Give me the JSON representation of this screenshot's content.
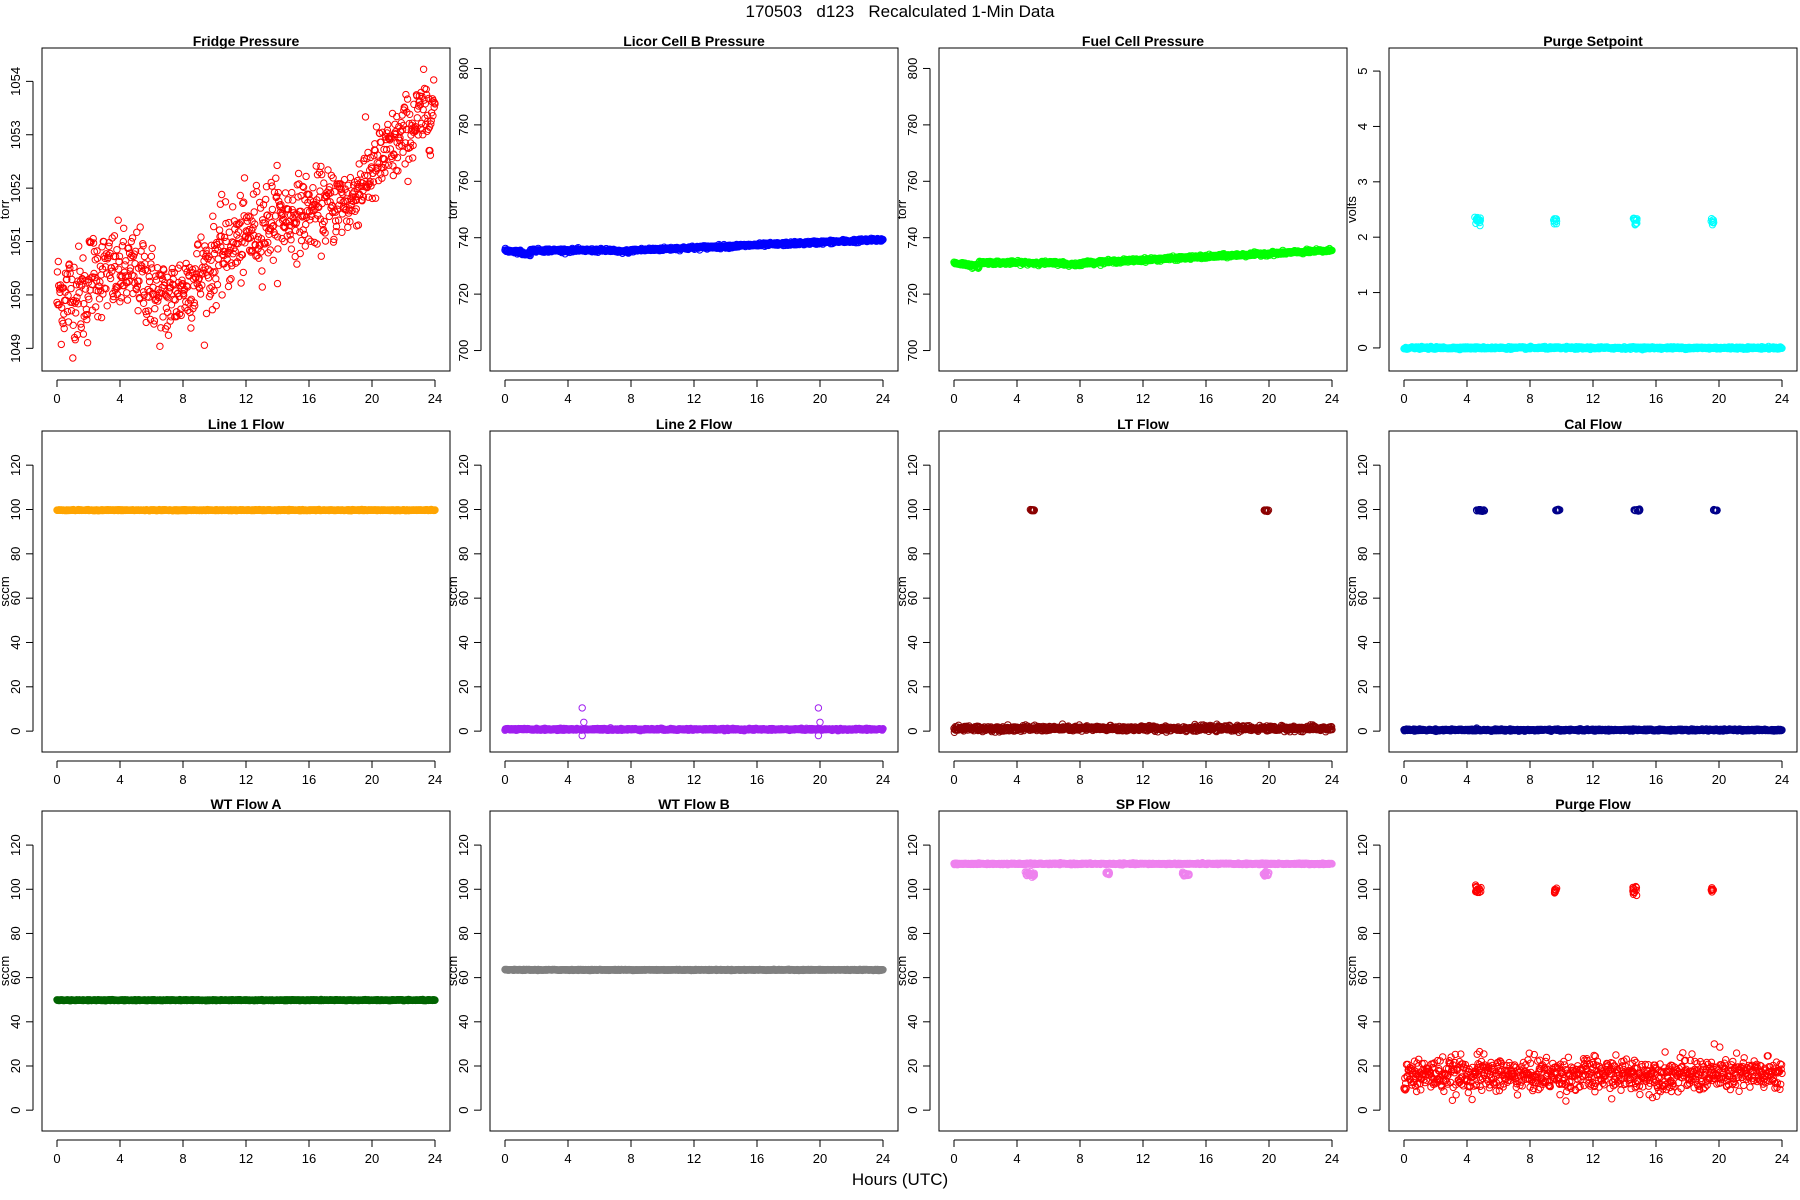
{
  "figure": {
    "title": "170503   d123   Recalculated 1-Min Data",
    "xlabel": "Hours (UTC)"
  },
  "chart_data": [
    {
      "type": "scatter",
      "title": "Fridge Pressure",
      "ylabel": "torr",
      "color": "#ff0000",
      "xlim": [
        0,
        24
      ],
      "ylim": [
        1048.8,
        1054.4
      ],
      "xticks": [
        0,
        4,
        8,
        12,
        16,
        20,
        24
      ],
      "yticks": [
        1049,
        1050,
        1051,
        1052,
        1053,
        1054
      ],
      "series": [
        {
          "segments": [
            {
              "x0": 0,
              "x1": 2,
              "y0": 1050.0,
              "y1": 1050.0,
              "noise": 0.45
            },
            {
              "x0": 2,
              "x1": 5.5,
              "y0": 1050.4,
              "y1": 1050.4,
              "noise": 0.4
            },
            {
              "x0": 5.5,
              "x1": 7,
              "y0": 1050.3,
              "y1": 1049.8,
              "noise": 0.4
            },
            {
              "x0": 7,
              "x1": 10,
              "y0": 1049.9,
              "y1": 1050.6,
              "noise": 0.4
            },
            {
              "x0": 10,
              "x1": 14,
              "y0": 1050.7,
              "y1": 1051.5,
              "noise": 0.4
            },
            {
              "x0": 14,
              "x1": 19,
              "y0": 1051.4,
              "y1": 1051.8,
              "noise": 0.35
            },
            {
              "x0": 19,
              "x1": 24,
              "y0": 1052.0,
              "y1": 1053.6,
              "noise": 0.35
            }
          ]
        }
      ]
    },
    {
      "type": "scatter",
      "title": "Licor Cell B Pressure",
      "ylabel": "torr",
      "color": "#0000ff",
      "xlim": [
        0,
        24
      ],
      "ylim": [
        697,
        803
      ],
      "xticks": [
        0,
        4,
        8,
        12,
        16,
        20,
        24
      ],
      "yticks": [
        700,
        720,
        740,
        760,
        780,
        800
      ],
      "series": [
        {
          "segments": [
            {
              "x0": 0,
              "x1": 1,
              "y0": 735.5,
              "y1": 735.0,
              "noise": 0.3
            },
            {
              "x0": 1,
              "x1": 1.6,
              "y0": 734.5,
              "y1": 734.2,
              "noise": 0.3
            },
            {
              "x0": 1.6,
              "x1": 7,
              "y0": 735.5,
              "y1": 735.5,
              "noise": 0.3
            },
            {
              "x0": 7,
              "x1": 8,
              "y0": 735.0,
              "y1": 735.2,
              "noise": 0.3
            },
            {
              "x0": 8,
              "x1": 24,
              "y0": 735.5,
              "y1": 739.3,
              "noise": 0.3
            }
          ]
        }
      ]
    },
    {
      "type": "scatter",
      "title": "Fuel Cell Pressure",
      "ylabel": "torr",
      "color": "#00ff00",
      "xlim": [
        0,
        24
      ],
      "ylim": [
        697,
        803
      ],
      "xticks": [
        0,
        4,
        8,
        12,
        16,
        20,
        24
      ],
      "yticks": [
        700,
        720,
        740,
        760,
        780,
        800
      ],
      "series": [
        {
          "segments": [
            {
              "x0": 0,
              "x1": 1,
              "y0": 731.0,
              "y1": 730.5,
              "noise": 0.3
            },
            {
              "x0": 1,
              "x1": 1.6,
              "y0": 730.0,
              "y1": 729.8,
              "noise": 0.3
            },
            {
              "x0": 1.6,
              "x1": 7,
              "y0": 731.2,
              "y1": 731.0,
              "noise": 0.3
            },
            {
              "x0": 7,
              "x1": 8,
              "y0": 730.5,
              "y1": 730.6,
              "noise": 0.3
            },
            {
              "x0": 8,
              "x1": 24,
              "y0": 731.0,
              "y1": 735.5,
              "noise": 0.3
            }
          ]
        }
      ]
    },
    {
      "type": "scatter",
      "title": "Purge Setpoint",
      "ylabel": "volts",
      "color": "#00ffff",
      "xlim": [
        0,
        24
      ],
      "ylim": [
        -0.2,
        5.2
      ],
      "xticks": [
        0,
        4,
        8,
        12,
        16,
        20,
        24
      ],
      "yticks": [
        0,
        1,
        2,
        3,
        4,
        5
      ],
      "series": [
        {
          "segments": [
            {
              "x0": 0,
              "x1": 24,
              "y0": 0.0,
              "y1": 0.0,
              "noise": 0.01
            }
          ],
          "clusters": [
            {
              "x0": 4.5,
              "x1": 4.9,
              "y": 2.3,
              "noise": 0.05
            },
            {
              "x0": 9.5,
              "x1": 9.7,
              "y": 2.3,
              "noise": 0.05
            },
            {
              "x0": 14.5,
              "x1": 14.8,
              "y": 2.3,
              "noise": 0.05
            },
            {
              "x0": 19.5,
              "x1": 19.7,
              "y": 2.3,
              "noise": 0.05
            }
          ]
        }
      ]
    },
    {
      "type": "scatter",
      "title": "Line 1 Flow",
      "ylabel": "sccm",
      "color": "#ffa500",
      "xlim": [
        0,
        24
      ],
      "ylim": [
        -4,
        130
      ],
      "xticks": [
        0,
        4,
        8,
        12,
        16,
        20,
        24
      ],
      "yticks": [
        0,
        20,
        40,
        60,
        80,
        100,
        120
      ],
      "series": [
        {
          "segments": [
            {
              "x0": 0,
              "x1": 24,
              "y0": 99.7,
              "y1": 99.7,
              "noise": 0.1
            }
          ]
        }
      ]
    },
    {
      "type": "scatter",
      "title": "Line 2 Flow",
      "ylabel": "sccm",
      "color": "#a020f0",
      "xlim": [
        0,
        24
      ],
      "ylim": [
        -4,
        130
      ],
      "xticks": [
        0,
        4,
        8,
        12,
        16,
        20,
        24
      ],
      "yticks": [
        0,
        20,
        40,
        60,
        80,
        100,
        120
      ],
      "series": [
        {
          "segments": [
            {
              "x0": 0,
              "x1": 24,
              "y0": 0.8,
              "y1": 0.8,
              "noise": 0.2
            }
          ],
          "points": [
            [
              4.9,
              10.5
            ],
            [
              5.0,
              4.0
            ],
            [
              4.9,
              -2.0
            ],
            [
              19.9,
              10.5
            ],
            [
              20.0,
              4.0
            ],
            [
              19.9,
              -2.0
            ],
            [
              6.7,
              1.5
            ]
          ]
        }
      ]
    },
    {
      "type": "scatter",
      "title": "LT Flow",
      "ylabel": "sccm",
      "color": "#8b0000",
      "xlim": [
        0,
        24
      ],
      "ylim": [
        -4,
        130
      ],
      "xticks": [
        0,
        4,
        8,
        12,
        16,
        20,
        24
      ],
      "yticks": [
        0,
        20,
        40,
        60,
        80,
        100,
        120
      ],
      "series": [
        {
          "segments": [
            {
              "x0": 0,
              "x1": 24,
              "y0": 1.2,
              "y1": 1.2,
              "noise": 0.6
            }
          ],
          "clusters": [
            {
              "x0": 4.8,
              "x1": 5.1,
              "y": 99.7,
              "noise": 0.2
            },
            {
              "x0": 19.7,
              "x1": 20.0,
              "y": 99.7,
              "noise": 0.2
            }
          ]
        }
      ]
    },
    {
      "type": "scatter",
      "title": "Cal Flow",
      "ylabel": "sccm",
      "color": "#00008b",
      "xlim": [
        0,
        24
      ],
      "ylim": [
        -4,
        130
      ],
      "xticks": [
        0,
        4,
        8,
        12,
        16,
        20,
        24
      ],
      "yticks": [
        0,
        20,
        40,
        60,
        80,
        100,
        120
      ],
      "series": [
        {
          "segments": [
            {
              "x0": 0,
              "x1": 24,
              "y0": 0.5,
              "y1": 0.5,
              "noise": 0.2
            }
          ],
          "clusters": [
            {
              "x0": 4.6,
              "x1": 5.2,
              "y": 99.7,
              "noise": 0.2
            },
            {
              "x0": 9.6,
              "x1": 9.9,
              "y": 99.7,
              "noise": 0.2
            },
            {
              "x0": 14.6,
              "x1": 15.0,
              "y": 99.7,
              "noise": 0.2
            },
            {
              "x0": 19.6,
              "x1": 19.9,
              "y": 99.7,
              "noise": 0.2
            }
          ]
        }
      ]
    },
    {
      "type": "scatter",
      "title": "WT Flow A",
      "ylabel": "sccm",
      "color": "#006400",
      "xlim": [
        0,
        24
      ],
      "ylim": [
        -4,
        130
      ],
      "xticks": [
        0,
        4,
        8,
        12,
        16,
        20,
        24
      ],
      "yticks": [
        0,
        20,
        40,
        60,
        80,
        100,
        120
      ],
      "series": [
        {
          "segments": [
            {
              "x0": 0,
              "x1": 24,
              "y0": 49.8,
              "y1": 49.8,
              "noise": 0.1
            }
          ]
        }
      ]
    },
    {
      "type": "scatter",
      "title": "WT Flow B",
      "ylabel": "sccm",
      "color": "#808080",
      "xlim": [
        0,
        24
      ],
      "ylim": [
        -4,
        130
      ],
      "xticks": [
        0,
        4,
        8,
        12,
        16,
        20,
        24
      ],
      "yticks": [
        0,
        20,
        40,
        60,
        80,
        100,
        120
      ],
      "series": [
        {
          "segments": [
            {
              "x0": 0,
              "x1": 24,
              "y0": 63.5,
              "y1": 63.5,
              "noise": 0.1
            }
          ]
        }
      ]
    },
    {
      "type": "scatter",
      "title": "SP Flow",
      "ylabel": "sccm",
      "color": "#ee82ee",
      "xlim": [
        0,
        24
      ],
      "ylim": [
        -4,
        130
      ],
      "xticks": [
        0,
        4,
        8,
        12,
        16,
        20,
        24
      ],
      "yticks": [
        0,
        20,
        40,
        60,
        80,
        100,
        120
      ],
      "series": [
        {
          "segments": [
            {
              "x0": 0,
              "x1": 24,
              "y0": 111.5,
              "y1": 111.5,
              "noise": 0.15
            }
          ],
          "clusters": [
            {
              "x0": 4.5,
              "x1": 5.1,
              "y": 107.0,
              "noise": 0.5
            },
            {
              "x0": 9.6,
              "x1": 9.9,
              "y": 107.0,
              "noise": 0.5
            },
            {
              "x0": 14.5,
              "x1": 15.0,
              "y": 107.0,
              "noise": 0.5
            },
            {
              "x0": 19.6,
              "x1": 20.0,
              "y": 107.0,
              "noise": 0.5
            }
          ]
        }
      ]
    },
    {
      "type": "scatter",
      "title": "Purge Flow",
      "ylabel": "sccm",
      "color": "#ff0000",
      "xlim": [
        0,
        24
      ],
      "ylim": [
        -4,
        130
      ],
      "xticks": [
        0,
        4,
        8,
        12,
        16,
        20,
        24
      ],
      "yticks": [
        0,
        20,
        40,
        60,
        80,
        100,
        120
      ],
      "series": [
        {
          "segments": [
            {
              "x0": 0,
              "x1": 24,
              "y0": 16.0,
              "y1": 16.0,
              "noise": 3.8
            }
          ],
          "clusters": [
            {
              "x0": 4.5,
              "x1": 4.9,
              "y": 100.0,
              "noise": 1.0
            },
            {
              "x0": 9.5,
              "x1": 9.7,
              "y": 99.5,
              "noise": 1.0
            },
            {
              "x0": 14.5,
              "x1": 14.8,
              "y": 99.5,
              "noise": 1.0
            },
            {
              "x0": 19.5,
              "x1": 19.7,
              "y": 100.0,
              "noise": 0.5
            }
          ],
          "points": [
            [
              19.7,
              30.0
            ],
            [
              4.8,
              26.5
            ]
          ]
        }
      ]
    }
  ]
}
